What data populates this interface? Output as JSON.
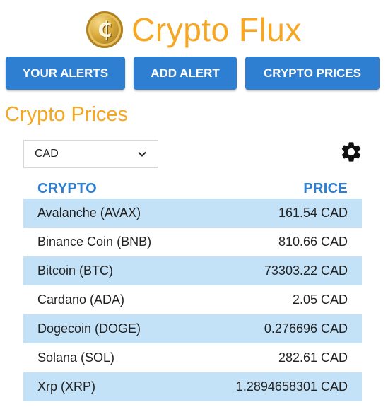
{
  "app": {
    "title": "Crypto Flux",
    "logo_icon": "bitcoin-coin-icon",
    "logo_glyph": "₵"
  },
  "nav": {
    "alerts_label": "YOUR ALERTS",
    "add_alert_label": "ADD ALERT",
    "prices_label": "CRYPTO PRICES"
  },
  "section": {
    "title": "Crypto Prices"
  },
  "currency_select": {
    "value": "CAD",
    "icon": "chevron-down-icon"
  },
  "settings": {
    "icon": "gear-icon"
  },
  "table": {
    "headers": {
      "crypto": "CRYPTO",
      "price": "PRICE"
    },
    "rows": [
      {
        "name": "Avalanche (AVAX)",
        "price": "161.54 CAD"
      },
      {
        "name": "Binance Coin (BNB)",
        "price": "810.66 CAD"
      },
      {
        "name": "Bitcoin (BTC)",
        "price": "73303.22 CAD"
      },
      {
        "name": "Cardano (ADA)",
        "price": "2.05 CAD"
      },
      {
        "name": "Dogecoin (DOGE)",
        "price": "0.276696 CAD"
      },
      {
        "name": "Solana (SOL)",
        "price": "282.61 CAD"
      },
      {
        "name": "Xrp (XRP)",
        "price": "1.2894658301 CAD"
      }
    ]
  },
  "colors": {
    "accent_orange": "#f5a623",
    "button_blue": "#2e7fd1",
    "row_shade": "#c3e2f7"
  }
}
